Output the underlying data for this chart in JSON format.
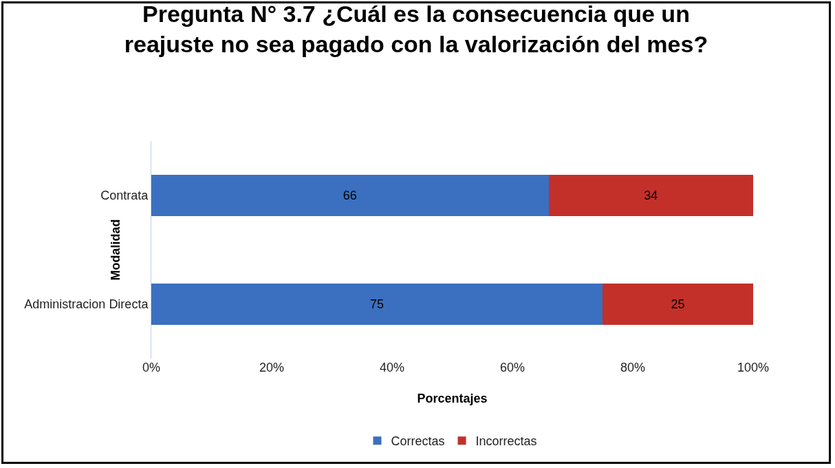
{
  "chart_data": {
    "type": "bar",
    "orientation": "horizontal",
    "stacked": true,
    "title": "Pregunta N° 3.7 ¿Cuál es la consecuencia que un reajuste no sea pagado con la valorización del mes?",
    "xlabel": "Porcentajes",
    "ylabel": "Modalidad",
    "categories": [
      "Contrata",
      "Administracion Directa"
    ],
    "series": [
      {
        "name": "Correctas",
        "color": "#3b6fc0",
        "values": [
          66,
          75
        ]
      },
      {
        "name": "Incorrectas",
        "color": "#c3302a",
        "values": [
          34,
          25
        ]
      }
    ],
    "xlim": [
      0,
      100
    ],
    "xticks": [
      {
        "value": 0,
        "label": "0%"
      },
      {
        "value": 20,
        "label": "20%"
      },
      {
        "value": 40,
        "label": "40%"
      },
      {
        "value": 60,
        "label": "60%"
      },
      {
        "value": 80,
        "label": "80%"
      },
      {
        "value": 100,
        "label": "100%"
      }
    ],
    "data_labels": true,
    "grid": false,
    "legend": "bottom"
  }
}
